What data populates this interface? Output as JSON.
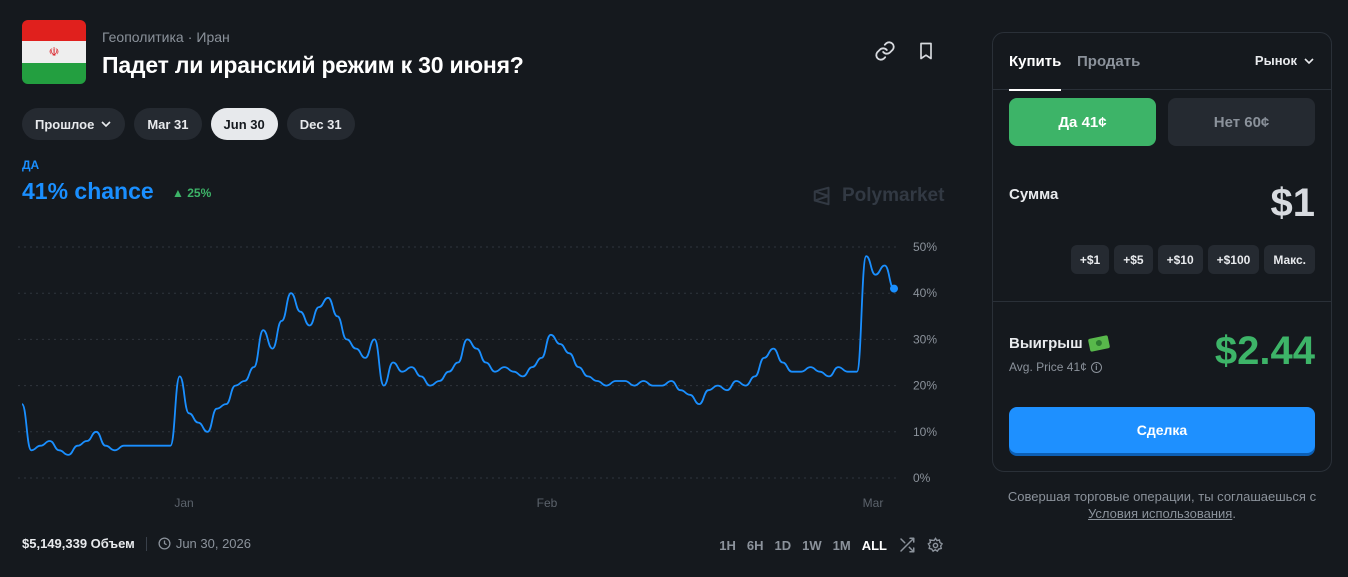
{
  "header": {
    "category": "Геополитика",
    "subcategory": "Иран",
    "breadcrumb_separator": "·",
    "title": "Падет ли иранский режим к 30 июня?",
    "flag_icon": "iran-flag-icon"
  },
  "filters": [
    {
      "label": "Прошлое",
      "active": false,
      "dropdown": true
    },
    {
      "label": "Mar 31",
      "active": false
    },
    {
      "label": "Jun 30",
      "active": true
    },
    {
      "label": "Dec 31",
      "active": false
    }
  ],
  "chance": {
    "outcome_label": "ДА",
    "value_text": "41% chance",
    "delta_text": "25%",
    "color": "#1a8fff",
    "delta_color": "#3db468"
  },
  "watermark": "Polymarket",
  "chart_data": {
    "type": "line",
    "series": [
      {
        "color": "#1a8fff",
        "values": [
          16,
          6,
          7,
          8,
          6,
          5,
          7,
          8,
          10,
          7,
          6,
          7,
          7,
          7,
          7,
          7,
          7,
          22,
          14,
          12,
          10,
          15,
          16,
          20,
          21,
          24,
          32,
          28,
          34,
          40,
          36,
          33,
          37,
          39,
          35,
          30,
          28,
          26,
          30,
          20,
          25,
          23,
          24,
          22,
          20,
          21,
          23,
          25,
          30,
          28,
          25,
          23,
          24,
          23,
          22,
          24,
          26,
          31,
          29,
          27,
          24,
          22,
          21,
          20,
          21,
          21,
          20,
          21,
          20,
          20,
          21,
          19,
          18,
          16,
          19,
          20,
          19,
          21,
          20,
          22,
          26,
          28,
          25,
          23,
          23,
          24,
          23,
          22,
          24,
          23,
          23,
          48,
          44,
          46,
          41
        ]
      }
    ],
    "x_tick_labels": [
      "Jan",
      "Feb",
      "Mar"
    ],
    "y_tick_labels": [
      "50%",
      "40%",
      "30%",
      "20%",
      "10%",
      "0%"
    ],
    "ylim": [
      0,
      50
    ],
    "grid": true
  },
  "footer": {
    "volume": "$5,149,339 Объем",
    "end_date": "Jun 30, 2026",
    "ranges": [
      "1H",
      "6H",
      "1D",
      "1W",
      "1M",
      "ALL"
    ],
    "active_range": "ALL"
  },
  "trade": {
    "tab_buy": "Купить",
    "tab_sell": "Продать",
    "order_type": "Рынок",
    "yes_label": "Да",
    "yes_price": "41¢",
    "no_label": "Нет",
    "no_price": "60¢",
    "amount_label": "Сумма",
    "amount_value": "$1",
    "quick_amounts": [
      "+$1",
      "+$5",
      "+$10",
      "+$100",
      "Макс."
    ],
    "win_label": "Выигрыш",
    "avg_price": "Avg. Price 41¢",
    "win_value": "$2.44",
    "submit_label": "Сделка",
    "yes_color": "#3db468",
    "submit_color": "#1e90ff"
  },
  "terms": {
    "text": "Совершая торговые операции, ты соглашаешься с",
    "link": "Условия использования",
    "end": "."
  }
}
